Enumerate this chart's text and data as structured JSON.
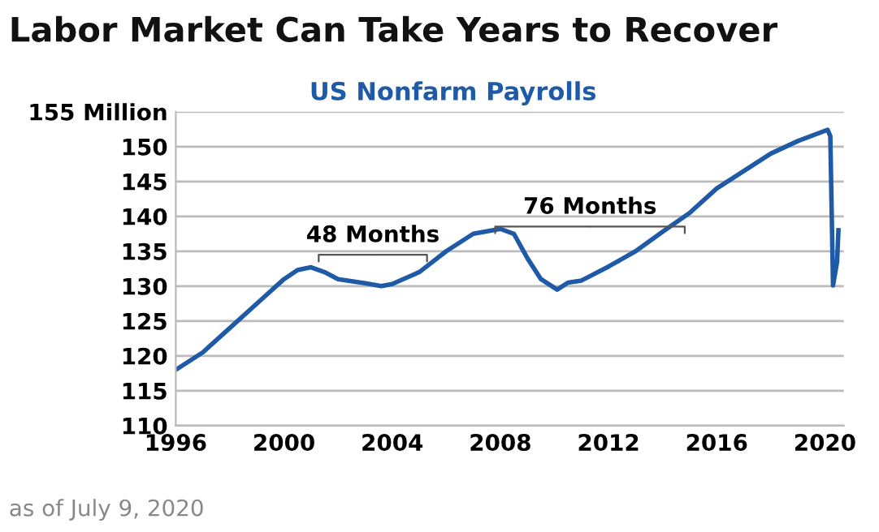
{
  "chart_data": {
    "type": "line",
    "title": "Labor Market Can Take Years to Recover",
    "subtitle": "US Nonfarm Payrolls",
    "annotations": [
      "48 Months",
      "76 Months",
      "as of July 9, 2020"
    ],
    "x": [
      1996.0,
      1997.0,
      1998.0,
      1999.0,
      2000.0,
      2000.5,
      2001.0,
      2001.5,
      2002.0,
      2003.0,
      2003.6,
      2004.0,
      2005.0,
      2006.0,
      2007.0,
      2008.0,
      2008.5,
      2009.0,
      2009.5,
      2010.1,
      2010.5,
      2011.0,
      2012.0,
      2013.0,
      2014.0,
      2015.0,
      2016.0,
      2017.0,
      2018.0,
      2019.0,
      2020.1,
      2020.2,
      2020.3,
      2020.45,
      2020.5
    ],
    "series": [
      {
        "color": "#1f5aa6",
        "values": [
          118,
          120.5,
          124,
          127.5,
          131,
          132.3,
          132.7,
          132,
          131,
          130.4,
          130,
          130.3,
          132,
          135,
          137.5,
          138.2,
          137.5,
          134,
          131,
          129.5,
          130.5,
          130.8,
          132.8,
          135,
          137.8,
          140.5,
          144,
          146.5,
          149,
          150.8,
          152.4,
          151.5,
          130.1,
          133.5,
          138
        ]
      }
    ],
    "xlim": [
      1996,
      2020.7
    ],
    "xticks": [
      1996,
      2000,
      2004,
      2008,
      2012,
      2016,
      2020
    ],
    "ylim": [
      110,
      155
    ],
    "yticks": [
      110,
      115,
      120,
      125,
      130,
      135,
      140,
      145,
      150,
      {
        "value": 155,
        "label": "155 Million"
      }
    ],
    "grid": "y",
    "legend": false,
    "marker": "none",
    "line_style": "solid"
  }
}
